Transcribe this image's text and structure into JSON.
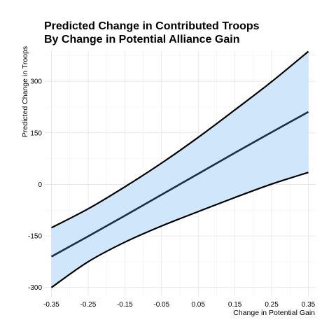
{
  "chart_data": {
    "type": "line",
    "title_lines": [
      "Predicted Change in Contributed Troops",
      "By Change in Potential Alliance Gain"
    ],
    "xlabel": "Change in Potential Gain",
    "ylabel": "Predicted Change in Troops",
    "xlim": [
      -0.37,
      0.37
    ],
    "ylim": [
      -325,
      390
    ],
    "x_ticks": [
      -0.35,
      -0.25,
      -0.15,
      -0.05,
      0.05,
      0.15,
      0.25,
      0.35
    ],
    "x_tick_labels": [
      "-0.35",
      "-0.25",
      "-0.15",
      "-0.05",
      "0.05",
      "0.15",
      "0.25",
      "0.35"
    ],
    "y_ticks": [
      -300,
      -150,
      0,
      150,
      300
    ],
    "y_tick_labels": [
      "-300",
      "-150",
      "0",
      "150",
      "300"
    ],
    "x": [
      -0.35,
      -0.25,
      -0.15,
      -0.05,
      0.05,
      0.15,
      0.25,
      0.35
    ],
    "series": [
      {
        "role": "estimate",
        "values": [
          -210,
          -151,
          -91,
          -30,
          31,
          92,
          152,
          211
        ]
      },
      {
        "role": "upper",
        "values": [
          -126,
          -71,
          -7,
          62,
          137,
          217,
          299,
          387
        ]
      },
      {
        "role": "lower",
        "values": [
          -300,
          -225,
          -168,
          -121,
          -79,
          -38,
          1,
          35
        ]
      }
    ],
    "grid": true,
    "legend": "none",
    "colors": {
      "band": "#cfe6fb",
      "estimate": "#1b2f48",
      "bounds": "#000000"
    }
  }
}
